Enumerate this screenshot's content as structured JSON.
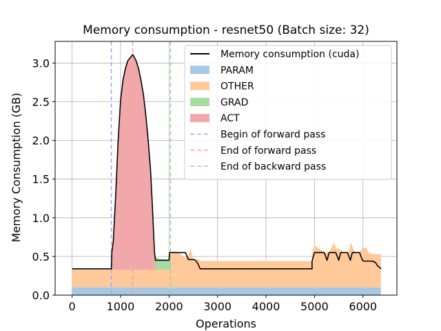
{
  "chart_data": {
    "type": "area",
    "title": "Memory consumption - resnet50 (Batch size: 32)",
    "xlabel": "Operations",
    "ylabel": "Memory Consumption (GB)",
    "xlim": [
      -350,
      6700
    ],
    "ylim": [
      0,
      3.28
    ],
    "xticks": [
      0,
      1000,
      2000,
      3000,
      4000,
      5000,
      6000
    ],
    "yticks": [
      0.0,
      0.5,
      1.0,
      1.5,
      2.0,
      2.5,
      3.0
    ],
    "xtick_labels": [
      "0",
      "1000",
      "2000",
      "3000",
      "4000",
      "5000",
      "6000"
    ],
    "ytick_labels": [
      "0.0",
      "0.5",
      "1.0",
      "1.5",
      "2.0",
      "2.5",
      "3.0"
    ],
    "grid": true,
    "legend_position": "top-right",
    "legend": [
      {
        "label": "Memory consumption (cuda)",
        "kind": "line",
        "color": "#000000",
        "dash": "solid"
      },
      {
        "label": "PARAM",
        "kind": "patch",
        "color": "#a6c8e3"
      },
      {
        "label": "OTHER",
        "kind": "patch",
        "color": "#ffc99a"
      },
      {
        "label": "GRAD",
        "kind": "patch",
        "color": "#a7dba1"
      },
      {
        "label": "ACT",
        "kind": "patch",
        "color": "#f1a8ab"
      },
      {
        "label": "Begin of forward pass",
        "kind": "line",
        "color": "#a0a0ff",
        "dash": "dashed"
      },
      {
        "label": "End of forward pass",
        "kind": "line",
        "color": "#ff9a9a",
        "dash": "dashed"
      },
      {
        "label": "End of backward pass",
        "kind": "line",
        "color": "#9acd9a",
        "dash": "dashed"
      }
    ],
    "vlines": [
      {
        "x": 810,
        "label": "Begin of forward pass",
        "color": "#a0a0ff"
      },
      {
        "x": 1250,
        "label": "End of forward pass",
        "color": "#ff9a9a"
      },
      {
        "x": 2030,
        "label": "End of backward pass",
        "color": "#9acd9a"
      }
    ],
    "series": [
      {
        "name": "PARAM",
        "color": "#a6c8e3",
        "x": [
          0,
          6370
        ],
        "y": [
          0.1,
          0.1
        ]
      },
      {
        "name": "OTHER",
        "color": "#ffc99a",
        "x": [
          0,
          800,
          810,
          1000,
          1500,
          1700,
          1700,
          2000,
          2010,
          2100,
          2200,
          2250,
          2300,
          2340,
          2400,
          2450,
          2500,
          2560,
          2620,
          2650,
          2700,
          4950,
          4950,
          5000,
          5050,
          5100,
          5150,
          5200,
          5300,
          5400,
          5450,
          5500,
          5550,
          5600,
          5700,
          5750,
          5800,
          5850,
          5900,
          5980,
          6060,
          6120,
          6200,
          6370
        ],
        "y": [
          0.33,
          0.33,
          0.33,
          0.33,
          0.33,
          0.33,
          0.35,
          0.35,
          0.52,
          0.57,
          0.54,
          0.53,
          0.5,
          0.47,
          0.52,
          0.6,
          0.46,
          0.46,
          0.46,
          0.44,
          0.44,
          0.44,
          0.55,
          0.65,
          0.62,
          0.6,
          0.58,
          0.55,
          0.55,
          0.68,
          0.6,
          0.6,
          0.58,
          0.55,
          0.55,
          0.68,
          0.6,
          0.55,
          0.53,
          0.6,
          0.62,
          0.55,
          0.53,
          0.53
        ]
      },
      {
        "name": "GRAD",
        "color": "#a7dba1",
        "x": [
          1250,
          1500,
          1700,
          1800,
          2000,
          2030
        ],
        "y": [
          0.33,
          0.4,
          0.5,
          0.47,
          0.46,
          0.47
        ]
      },
      {
        "name": "ACT",
        "color": "#f1a8ab",
        "x": [
          810,
          850,
          900,
          950,
          1000,
          1050,
          1100,
          1150,
          1200,
          1250,
          1280,
          1320,
          1370,
          1420,
          1470,
          1520,
          1570,
          1620,
          1660,
          1700,
          1720
        ],
        "y": [
          0.33,
          0.7,
          1.3,
          2.0,
          2.52,
          2.78,
          2.93,
          3.03,
          3.07,
          3.09,
          3.08,
          3.03,
          2.93,
          2.78,
          2.6,
          2.33,
          2.0,
          1.6,
          1.1,
          0.55,
          0.45
        ]
      },
      {
        "name": "Memory consumption (cuda)",
        "color": "#000000",
        "x": [
          0,
          810,
          820,
          850,
          900,
          950,
          1000,
          1050,
          1100,
          1150,
          1200,
          1250,
          1280,
          1320,
          1370,
          1420,
          1470,
          1520,
          1570,
          1620,
          1660,
          1700,
          1720,
          2000,
          2010,
          2340,
          2370,
          2400,
          2470,
          2520,
          2560,
          2600,
          2640,
          2680,
          4950,
          4950,
          5000,
          5200,
          5230,
          5260,
          5300,
          5440,
          5470,
          5500,
          5540,
          5680,
          5710,
          5740,
          5780,
          5930,
          5960,
          5990,
          6020,
          6200,
          6260,
          6300,
          6340,
          6370
        ],
        "y": [
          0.34,
          0.34,
          0.55,
          0.7,
          1.3,
          2.0,
          2.52,
          2.78,
          2.93,
          3.03,
          3.07,
          3.11,
          3.08,
          3.03,
          2.93,
          2.78,
          2.6,
          2.33,
          2.0,
          1.6,
          1.1,
          0.55,
          0.45,
          0.45,
          0.55,
          0.55,
          0.5,
          0.46,
          0.46,
          0.46,
          0.44,
          0.4,
          0.34,
          0.34,
          0.34,
          0.44,
          0.55,
          0.55,
          0.5,
          0.45,
          0.55,
          0.55,
          0.5,
          0.45,
          0.55,
          0.55,
          0.5,
          0.45,
          0.55,
          0.55,
          0.5,
          0.45,
          0.44,
          0.44,
          0.42,
          0.38,
          0.36,
          0.34
        ]
      }
    ]
  }
}
